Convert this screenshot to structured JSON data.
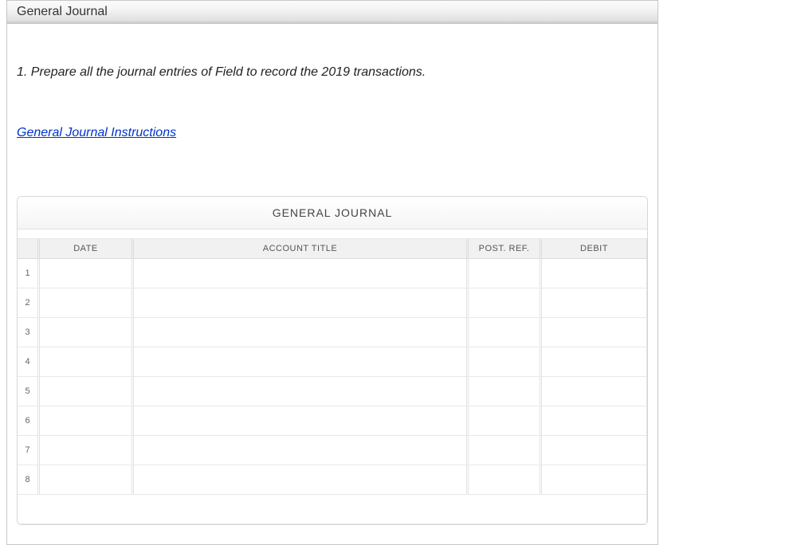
{
  "panel": {
    "title": "General Journal"
  },
  "instruction": "1. Prepare all the journal entries of Field to record the 2019 transactions.",
  "link": {
    "label": "General Journal Instructions"
  },
  "journal": {
    "title": "GENERAL JOURNAL",
    "columns": {
      "num": "",
      "date": "DATE",
      "account_title": "ACCOUNT TITLE",
      "post_ref": "POST. REF.",
      "debit": "DEBIT"
    },
    "rows": [
      {
        "num": "1",
        "date": "",
        "account_title": "",
        "post_ref": "",
        "debit": ""
      },
      {
        "num": "2",
        "date": "",
        "account_title": "",
        "post_ref": "",
        "debit": ""
      },
      {
        "num": "3",
        "date": "",
        "account_title": "",
        "post_ref": "",
        "debit": ""
      },
      {
        "num": "4",
        "date": "",
        "account_title": "",
        "post_ref": "",
        "debit": ""
      },
      {
        "num": "5",
        "date": "",
        "account_title": "",
        "post_ref": "",
        "debit": ""
      },
      {
        "num": "6",
        "date": "",
        "account_title": "",
        "post_ref": "",
        "debit": ""
      },
      {
        "num": "7",
        "date": "",
        "account_title": "",
        "post_ref": "",
        "debit": ""
      },
      {
        "num": "8",
        "date": "",
        "account_title": "",
        "post_ref": "",
        "debit": ""
      }
    ]
  },
  "style": {
    "header_gradient_top": "#fbfbfb",
    "header_gradient_bottom": "#c9c9c9",
    "link_color": "#0033cc",
    "border_color": "#c6c6c6",
    "th_bg": "#f1f1f1",
    "row_border": "#e8e8e8"
  }
}
